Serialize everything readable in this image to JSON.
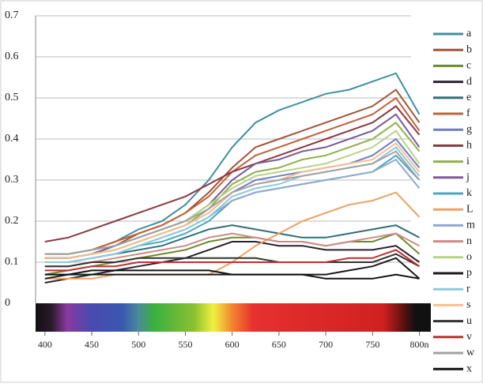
{
  "chart_data": {
    "type": "line",
    "x": [
      400,
      425,
      450,
      475,
      500,
      525,
      550,
      575,
      600,
      625,
      650,
      675,
      700,
      725,
      750,
      775,
      800
    ],
    "xlim": [
      390,
      808
    ],
    "xticks": [
      400,
      450,
      500,
      550,
      600,
      650,
      700,
      750,
      {
        "value": 800,
        "label": "800n"
      }
    ],
    "ylim": [
      0,
      0.7
    ],
    "yticks": [
      0,
      0.1,
      0.2,
      0.3,
      0.4,
      0.5,
      0.6,
      0.7
    ],
    "grid": true,
    "legend": "right",
    "series": [
      {
        "name": "a",
        "color": "#3f8fa0",
        "values": [
          0.12,
          0.12,
          0.13,
          0.15,
          0.18,
          0.2,
          0.24,
          0.3,
          0.38,
          0.44,
          0.47,
          0.49,
          0.51,
          0.52,
          0.54,
          0.56,
          0.46
        ]
      },
      {
        "name": "b",
        "color": "#a0553a",
        "values": [
          0.11,
          0.11,
          0.12,
          0.14,
          0.17,
          0.19,
          0.22,
          0.27,
          0.33,
          0.38,
          0.4,
          0.42,
          0.44,
          0.46,
          0.48,
          0.52,
          0.44
        ]
      },
      {
        "name": "c",
        "color": "#6f8a2e",
        "values": [
          0.07,
          0.08,
          0.09,
          0.1,
          0.11,
          0.12,
          0.13,
          0.15,
          0.16,
          0.16,
          0.15,
          0.15,
          0.14,
          0.15,
          0.15,
          0.17,
          0.12
        ]
      },
      {
        "name": "d",
        "color": "#2a1f2e",
        "values": [
          0.05,
          0.06,
          0.07,
          0.08,
          0.09,
          0.1,
          0.11,
          0.13,
          0.15,
          0.15,
          0.14,
          0.14,
          0.13,
          0.13,
          0.13,
          0.14,
          0.1
        ]
      },
      {
        "name": "e",
        "color": "#2f6f78",
        "values": [
          0.1,
          0.1,
          0.11,
          0.12,
          0.13,
          0.14,
          0.16,
          0.18,
          0.19,
          0.18,
          0.17,
          0.16,
          0.16,
          0.17,
          0.18,
          0.19,
          0.16
        ]
      },
      {
        "name": "f",
        "color": "#c0603a",
        "values": [
          0.12,
          0.12,
          0.13,
          0.15,
          0.17,
          0.19,
          0.22,
          0.26,
          0.32,
          0.36,
          0.38,
          0.4,
          0.42,
          0.44,
          0.46,
          0.5,
          0.42
        ]
      },
      {
        "name": "g",
        "color": "#6f7fbf",
        "values": [
          0.11,
          0.11,
          0.12,
          0.13,
          0.15,
          0.17,
          0.19,
          0.22,
          0.27,
          0.3,
          0.31,
          0.32,
          0.33,
          0.34,
          0.36,
          0.4,
          0.33
        ]
      },
      {
        "name": "h",
        "color": "#8a3a40",
        "values": [
          0.15,
          0.16,
          0.18,
          0.2,
          0.22,
          0.24,
          0.26,
          0.29,
          0.32,
          0.34,
          0.36,
          0.38,
          0.4,
          0.42,
          0.44,
          0.48,
          0.41
        ]
      },
      {
        "name": "i",
        "color": "#8fb04a",
        "values": [
          0.11,
          0.11,
          0.12,
          0.13,
          0.15,
          0.17,
          0.19,
          0.23,
          0.29,
          0.32,
          0.33,
          0.35,
          0.36,
          0.38,
          0.4,
          0.44,
          0.37
        ]
      },
      {
        "name": "j",
        "color": "#7a5a9a",
        "values": [
          0.11,
          0.11,
          0.12,
          0.14,
          0.16,
          0.18,
          0.2,
          0.24,
          0.3,
          0.34,
          0.35,
          0.37,
          0.38,
          0.4,
          0.42,
          0.46,
          0.38
        ]
      },
      {
        "name": "k",
        "color": "#4aa8c0",
        "values": [
          0.1,
          0.1,
          0.11,
          0.12,
          0.14,
          0.15,
          0.17,
          0.2,
          0.25,
          0.27,
          0.28,
          0.29,
          0.3,
          0.31,
          0.32,
          0.36,
          0.3
        ]
      },
      {
        "name": "L",
        "color": "#f0a060",
        "values": [
          0.06,
          0.06,
          0.06,
          0.07,
          0.07,
          0.07,
          0.07,
          0.07,
          0.1,
          0.14,
          0.17,
          0.2,
          0.22,
          0.24,
          0.25,
          0.27,
          0.21
        ]
      },
      {
        "name": "m",
        "color": "#8fa8d0",
        "values": [
          0.1,
          0.1,
          0.11,
          0.12,
          0.14,
          0.16,
          0.18,
          0.21,
          0.25,
          0.27,
          0.28,
          0.29,
          0.3,
          0.31,
          0.32,
          0.35,
          0.28
        ]
      },
      {
        "name": "n",
        "color": "#d08a86",
        "values": [
          0.09,
          0.09,
          0.1,
          0.11,
          0.12,
          0.13,
          0.14,
          0.16,
          0.17,
          0.16,
          0.15,
          0.15,
          0.14,
          0.15,
          0.16,
          0.17,
          0.14
        ]
      },
      {
        "name": "o",
        "color": "#b8d08a",
        "values": [
          0.12,
          0.12,
          0.13,
          0.14,
          0.16,
          0.18,
          0.2,
          0.24,
          0.28,
          0.31,
          0.32,
          0.33,
          0.34,
          0.36,
          0.38,
          0.42,
          0.34
        ]
      },
      {
        "name": "p",
        "color": "#1a1a1a",
        "values": [
          0.06,
          0.07,
          0.07,
          0.07,
          0.07,
          0.07,
          0.07,
          0.07,
          0.07,
          0.07,
          0.07,
          0.07,
          0.07,
          0.08,
          0.09,
          0.11,
          0.06
        ]
      },
      {
        "name": "r",
        "color": "#90c8d8",
        "values": [
          0.1,
          0.1,
          0.11,
          0.12,
          0.14,
          0.16,
          0.18,
          0.21,
          0.26,
          0.28,
          0.29,
          0.31,
          0.32,
          0.33,
          0.34,
          0.38,
          0.31
        ]
      },
      {
        "name": "s",
        "color": "#f6c090",
        "values": [
          0.11,
          0.11,
          0.12,
          0.13,
          0.15,
          0.17,
          0.19,
          0.22,
          0.27,
          0.29,
          0.3,
          0.32,
          0.33,
          0.34,
          0.35,
          0.39,
          0.32
        ]
      },
      {
        "name": "u",
        "color": "#333333",
        "values": [
          0.09,
          0.09,
          0.1,
          0.1,
          0.11,
          0.11,
          0.11,
          0.11,
          0.11,
          0.11,
          0.1,
          0.1,
          0.1,
          0.1,
          0.1,
          0.12,
          0.09
        ]
      },
      {
        "name": "v",
        "color": "#c03030",
        "values": [
          0.08,
          0.08,
          0.09,
          0.09,
          0.1,
          0.1,
          0.1,
          0.1,
          0.1,
          0.1,
          0.1,
          0.1,
          0.1,
          0.11,
          0.11,
          0.13,
          0.09
        ]
      },
      {
        "name": "w",
        "color": "#a0a0a0",
        "values": [
          0.12,
          0.12,
          0.13,
          0.14,
          0.16,
          0.18,
          0.2,
          0.23,
          0.27,
          0.29,
          0.3,
          0.31,
          0.32,
          0.33,
          0.34,
          0.37,
          0.3
        ]
      },
      {
        "name": "x",
        "color": "#111111",
        "values": [
          0.07,
          0.07,
          0.08,
          0.08,
          0.08,
          0.08,
          0.08,
          0.08,
          0.07,
          0.07,
          0.07,
          0.07,
          0.06,
          0.06,
          0.06,
          0.07,
          0.06
        ]
      }
    ]
  }
}
